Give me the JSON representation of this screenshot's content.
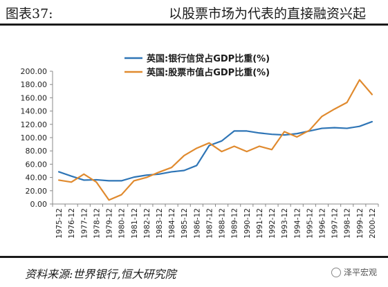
{
  "header": {
    "figure_number": "图表37:",
    "title": "以股票市场为代表的直接融资兴起"
  },
  "footer": {
    "source": "资料来源:世界银行,恒大研究院",
    "brand": "泽平宏观"
  },
  "chart_data": {
    "type": "line",
    "categories": [
      "1975-12",
      "1976-12",
      "1977-12",
      "1978-12",
      "1979-12",
      "1980-12",
      "1981-12",
      "1982-12",
      "1983-12",
      "1984-12",
      "1985-12",
      "1986-12",
      "1987-12",
      "1988-12",
      "1989-12",
      "1990-12",
      "1991-12",
      "1992-12",
      "1993-12",
      "1994-12",
      "1995-12",
      "1996-12",
      "1997-12",
      "1998-12",
      "1999-12",
      "2000-12"
    ],
    "series": [
      {
        "name": "英国:银行信贷占GDP比重(%)",
        "color": "#2e75b6",
        "values": [
          48.5,
          42,
          36,
          36.5,
          35,
          35,
          40.5,
          43.5,
          45,
          48.5,
          50.5,
          58,
          88,
          95,
          110,
          110,
          107,
          105,
          104,
          106,
          110,
          114,
          115,
          114,
          117,
          124
        ]
      },
      {
        "name": "英国:股票市值占GDP比重(%)",
        "color": "#e08a2e",
        "values": [
          36,
          33,
          45,
          33,
          6,
          14,
          35,
          40,
          48,
          55,
          73,
          84,
          92,
          79,
          87,
          79,
          87,
          82,
          109,
          101,
          111,
          132,
          143,
          153,
          187,
          165
        ]
      }
    ],
    "yticks": [
      "0.00",
      "20.00",
      "40.00",
      "60.00",
      "80.00",
      "100.00",
      "120.00",
      "140.00",
      "160.00",
      "180.00",
      "200.00"
    ],
    "ylim": [
      0,
      200
    ],
    "grid": false,
    "legend_position": "top-left"
  }
}
